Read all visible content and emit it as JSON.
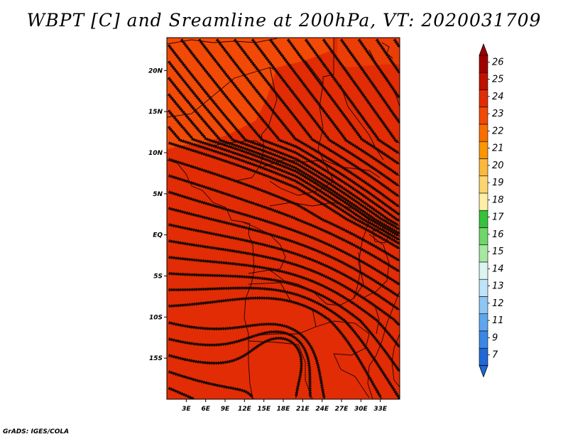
{
  "title": "WBPT [C] and Sreamline at 200hPa, VT: 2020031709",
  "credit": "GrADS: IGES/COLA",
  "map": {
    "lat_ticks": [
      "20N",
      "15N",
      "10N",
      "5N",
      "EQ",
      "5S",
      "10S",
      "15S"
    ],
    "lon_ticks": [
      "3E",
      "6E",
      "9E",
      "12E",
      "15E",
      "18E",
      "21E",
      "24E",
      "27E",
      "30E",
      "33E"
    ],
    "field_colors": {
      "base": "#e22c05",
      "warm": "#f24a06",
      "boundary": "#1a0500",
      "streamline": "#1a0800"
    }
  },
  "colorbar": {
    "labels": [
      "26",
      "25",
      "24",
      "23",
      "22",
      "21",
      "20",
      "19",
      "18",
      "17",
      "16",
      "15",
      "14",
      "13",
      "12",
      "11",
      "9",
      "7"
    ],
    "colors": [
      "#a00000",
      "#c01000",
      "#e22c05",
      "#f24a06",
      "#fa6e00",
      "#fb9500",
      "#fbb83a",
      "#fcd56f",
      "#fdf0a6",
      "#37c23b",
      "#6fd66b",
      "#a6e8a0",
      "#dcf5f0",
      "#bfe4fa",
      "#8ec6f5",
      "#5fa6ee",
      "#3a88e6",
      "#1f68d8"
    ],
    "top_arrow_color": "#a00000",
    "bottom_arrow_color": "#1f68d8"
  }
}
